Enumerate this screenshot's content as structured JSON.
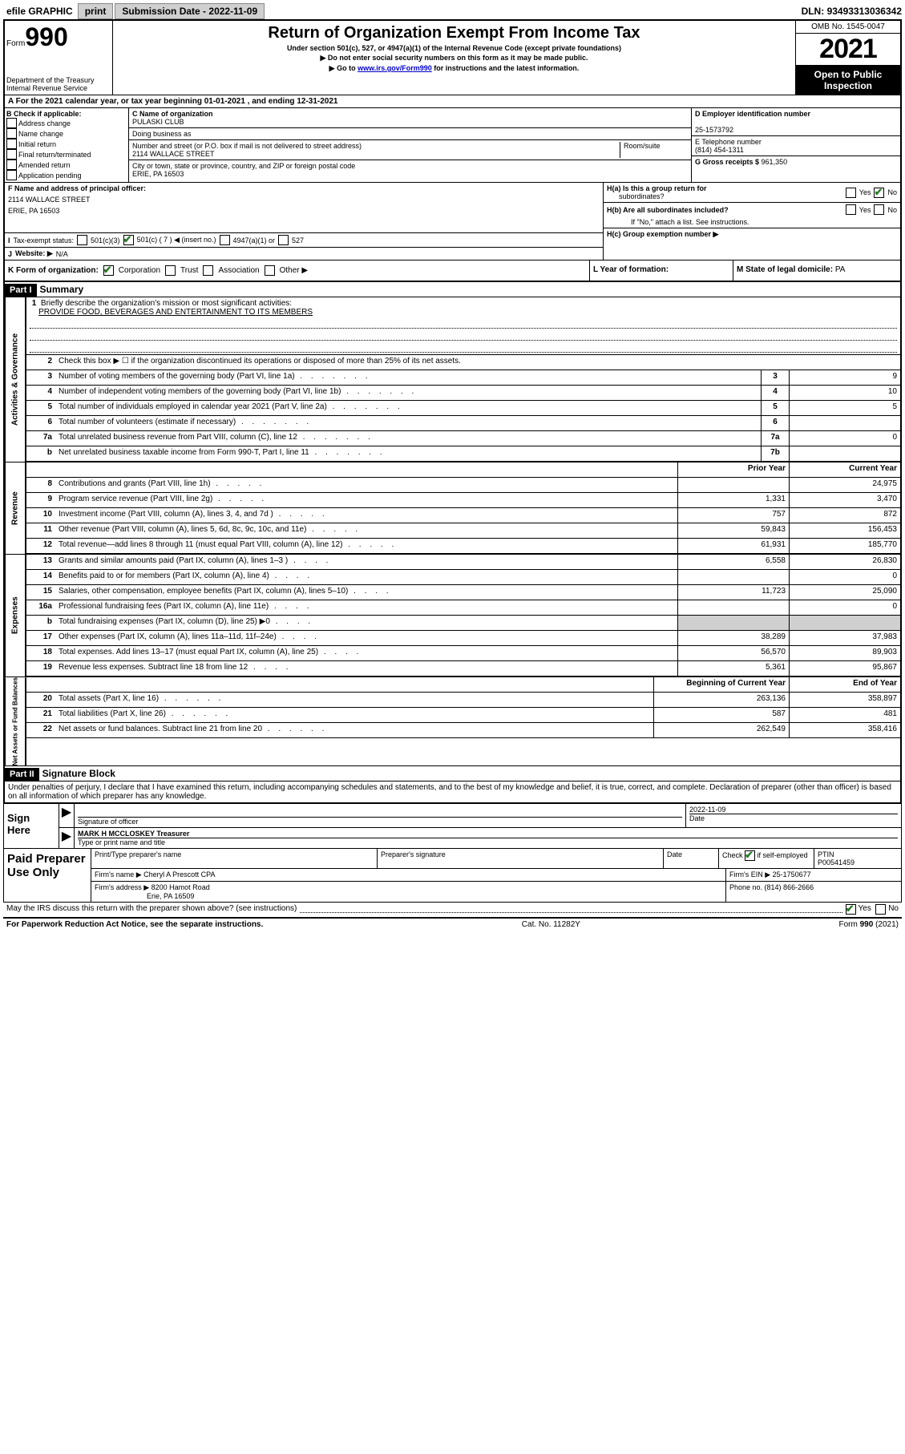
{
  "topbar": {
    "efile_label": "efile GRAPHIC",
    "print_btn": "print",
    "submission_label": "Submission Date - ",
    "submission_date": "2022-11-09",
    "dln_label": "DLN: ",
    "dln": "93493313036342"
  },
  "header": {
    "form_prefix": "Form",
    "form_number": "990",
    "dept": "Department of the Treasury",
    "service": "Internal Revenue Service",
    "title": "Return of Organization Exempt From Income Tax",
    "sub1": "Under section 501(c), 527, or 4947(a)(1) of the Internal Revenue Code (except private foundations)",
    "sub2": "▶ Do not enter social security numbers on this form as it may be made public.",
    "sub3_pre": "▶ Go to ",
    "sub3_link": "www.irs.gov/Form990",
    "sub3_post": " for instructions and the latest information.",
    "omb": "OMB No. 1545-0047",
    "year": "2021",
    "open1": "Open to Public",
    "open2": "Inspection"
  },
  "row_a": "A For the 2021 calendar year, or tax year beginning 01-01-2021   , and ending 12-31-2021",
  "section_b": {
    "b_label": "B Check if applicable:",
    "items": [
      "Address change",
      "Name change",
      "Initial return",
      "Final return/terminated",
      "Amended return",
      "Application pending"
    ],
    "c_label": "C Name of organization",
    "org_name": "PULASKI CLUB",
    "dba_label": "Doing business as",
    "addr_label": "Number and street (or P.O. box if mail is not delivered to street address)",
    "room_label": "Room/suite",
    "addr": "2114 WALLACE STREET",
    "city_label": "City or town, state or province, country, and ZIP or foreign postal code",
    "city": "ERIE, PA  16503",
    "d_label": "D Employer identification number",
    "ein": "25-1573792",
    "e_label": "E Telephone number",
    "phone": "(814) 454-1311",
    "g_label": "G Gross receipts $ ",
    "g_val": "961,350"
  },
  "section_f": {
    "f_label": "F  Name and address of principal officer:",
    "addr1": "2114 WALLACE STREET",
    "addr2": "ERIE, PA  16503",
    "i_label": "Tax-exempt status:",
    "i_501c3": "501(c)(3)",
    "i_501c": "501(c) ( 7 ) ◀ (insert no.)",
    "i_4947": "4947(a)(1) or",
    "i_527": "527",
    "j_label": "Website: ▶",
    "j_val": "N/A",
    "ha_label": "H(a)  Is this a group return for",
    "ha_sub": "subordinates?",
    "hb_label": "H(b)  Are all subordinates included?",
    "hb_note": "If \"No,\" attach a list. See instructions.",
    "hc_label": "H(c)  Group exemption number ▶",
    "yes": "Yes",
    "no": "No"
  },
  "section_k": {
    "k_label": "K Form of organization:",
    "corp": "Corporation",
    "trust": "Trust",
    "assoc": "Association",
    "other": "Other ▶",
    "l_label": "L Year of formation:",
    "m_label": "M State of legal domicile: ",
    "m_val": "PA"
  },
  "part1": {
    "hdr": "Part I",
    "title": "Summary",
    "vtab1": "Activities & Governance",
    "vtab2": "Revenue",
    "vtab3": "Expenses",
    "vtab4": "Net Assets or Fund Balances",
    "line1_label": "Briefly describe the organization's mission or most significant activities:",
    "mission": "PROVIDE FOOD, BEVERAGES AND ENTERTAINMENT TO ITS MEMBERS",
    "line2": "Check this box ▶ ☐  if the organization discontinued its operations or disposed of more than 25% of its net assets.",
    "lines_gov": [
      {
        "n": "3",
        "d": "Number of voting members of the governing body (Part VI, line 1a)",
        "box": "3",
        "v": "9"
      },
      {
        "n": "4",
        "d": "Number of independent voting members of the governing body (Part VI, line 1b)",
        "box": "4",
        "v": "10"
      },
      {
        "n": "5",
        "d": "Total number of individuals employed in calendar year 2021 (Part V, line 2a)",
        "box": "5",
        "v": "5"
      },
      {
        "n": "6",
        "d": "Total number of volunteers (estimate if necessary)",
        "box": "6",
        "v": ""
      },
      {
        "n": "7a",
        "d": "Total unrelated business revenue from Part VIII, column (C), line 12",
        "box": "7a",
        "v": "0"
      },
      {
        "n": "b",
        "d": "Net unrelated business taxable income from Form 990-T, Part I, line 11",
        "box": "7b",
        "v": ""
      }
    ],
    "prior_hdr": "Prior Year",
    "current_hdr": "Current Year",
    "beg_hdr": "Beginning of Current Year",
    "end_hdr": "End of Year",
    "lines_rev": [
      {
        "n": "8",
        "d": "Contributions and grants (Part VIII, line 1h)",
        "p": "",
        "c": "24,975"
      },
      {
        "n": "9",
        "d": "Program service revenue (Part VIII, line 2g)",
        "p": "1,331",
        "c": "3,470"
      },
      {
        "n": "10",
        "d": "Investment income (Part VIII, column (A), lines 3, 4, and 7d )",
        "p": "757",
        "c": "872"
      },
      {
        "n": "11",
        "d": "Other revenue (Part VIII, column (A), lines 5, 6d, 8c, 9c, 10c, and 11e)",
        "p": "59,843",
        "c": "156,453"
      },
      {
        "n": "12",
        "d": "Total revenue—add lines 8 through 11 (must equal Part VIII, column (A), line 12)",
        "p": "61,931",
        "c": "185,770"
      }
    ],
    "lines_exp": [
      {
        "n": "13",
        "d": "Grants and similar amounts paid (Part IX, column (A), lines 1–3 )",
        "p": "6,558",
        "c": "26,830"
      },
      {
        "n": "14",
        "d": "Benefits paid to or for members (Part IX, column (A), line 4)",
        "p": "",
        "c": "0"
      },
      {
        "n": "15",
        "d": "Salaries, other compensation, employee benefits (Part IX, column (A), lines 5–10)",
        "p": "11,723",
        "c": "25,090"
      },
      {
        "n": "16a",
        "d": "Professional fundraising fees (Part IX, column (A), line 11e)",
        "p": "",
        "c": "0"
      },
      {
        "n": "b",
        "d": "Total fundraising expenses (Part IX, column (D), line 25) ▶0",
        "p": "shade",
        "c": "shade"
      },
      {
        "n": "17",
        "d": "Other expenses (Part IX, column (A), lines 11a–11d, 11f–24e)",
        "p": "38,289",
        "c": "37,983"
      },
      {
        "n": "18",
        "d": "Total expenses. Add lines 13–17 (must equal Part IX, column (A), line 25)",
        "p": "56,570",
        "c": "89,903"
      },
      {
        "n": "19",
        "d": "Revenue less expenses. Subtract line 18 from line 12",
        "p": "5,361",
        "c": "95,867"
      }
    ],
    "lines_net": [
      {
        "n": "20",
        "d": "Total assets (Part X, line 16)",
        "p": "263,136",
        "c": "358,897"
      },
      {
        "n": "21",
        "d": "Total liabilities (Part X, line 26)",
        "p": "587",
        "c": "481"
      },
      {
        "n": "22",
        "d": "Net assets or fund balances. Subtract line 21 from line 20",
        "p": "262,549",
        "c": "358,416"
      }
    ]
  },
  "part2": {
    "hdr": "Part II",
    "title": "Signature Block",
    "penalty": "Under penalties of perjury, I declare that I have examined this return, including accompanying schedules and statements, and to the best of my knowledge and belief, it is true, correct, and complete. Declaration of preparer (other than officer) is based on all information of which preparer has any knowledge.",
    "sign_here": "Sign Here",
    "sig_officer": "Signature of officer",
    "date_label": "Date",
    "sig_date": "2022-11-09",
    "officer_name": "MARK H MCCLOSKEY Treasurer",
    "type_name": "Type or print name and title",
    "paid": "Paid Preparer Use Only",
    "prep_name_hdr": "Print/Type preparer's name",
    "prep_sig_hdr": "Preparer's signature",
    "prep_date_hdr": "Date",
    "check_if": "Check",
    "self_emp": "if self-employed",
    "ptin_label": "PTIN",
    "ptin": "P00541459",
    "firm_name_label": "Firm's name     ▶ ",
    "firm_name": "Cheryl A Prescott CPA",
    "firm_ein_label": "Firm's EIN ▶ ",
    "firm_ein": "25-1750677",
    "firm_addr_label": "Firm's address ▶ ",
    "firm_addr1": "8200 Hamot Road",
    "firm_addr2": "Erie, PA  16509",
    "phone_label": "Phone no. ",
    "phone": "(814) 866-2666",
    "may_irs": "May the IRS discuss this return with the preparer shown above? (see instructions)"
  },
  "footer": {
    "paperwork": "For Paperwork Reduction Act Notice, see the separate instructions.",
    "cat": "Cat. No. 11282Y",
    "form": "Form 990 (2021)"
  }
}
